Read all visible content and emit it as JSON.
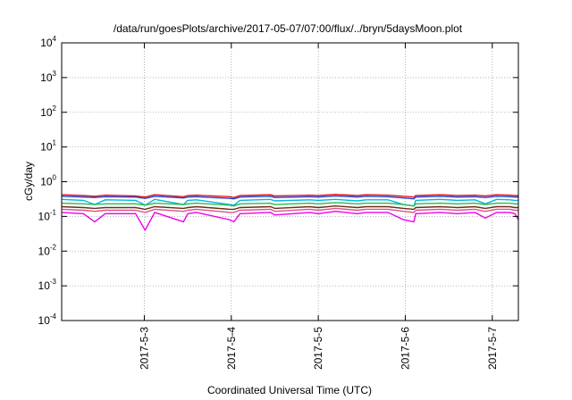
{
  "chart_data": {
    "type": "line",
    "title": "/data/run/goesPlots/archive/2017-05-07/07:00/flux/../bryn/5daysMoon.plot",
    "xlabel": "Coordinated Universal Time (UTC)",
    "ylabel": "cGy/day",
    "yscale": "log",
    "ylim": [
      0.0001,
      10000
    ],
    "xlim": [
      2.05,
      7.3
    ],
    "grid": true,
    "y_ticks": [
      {
        "base": "10",
        "exp": "4",
        "value": 10000
      },
      {
        "base": "10",
        "exp": "3",
        "value": 1000
      },
      {
        "base": "10",
        "exp": "2",
        "value": 100
      },
      {
        "base": "10",
        "exp": "1",
        "value": 10
      },
      {
        "base": "10",
        "exp": "0",
        "value": 1
      },
      {
        "base": "10",
        "exp": "-1",
        "value": 0.1
      },
      {
        "base": "10",
        "exp": "-2",
        "value": 0.01
      },
      {
        "base": "10",
        "exp": "-3",
        "value": 0.001
      },
      {
        "base": "10",
        "exp": "-4",
        "value": 0.0001
      }
    ],
    "x_ticks": [
      {
        "label": "2017-5-3",
        "value": 3
      },
      {
        "label": "2017-5-4",
        "value": 4
      },
      {
        "label": "2017-5-5",
        "value": 5
      },
      {
        "label": "2017-5-6",
        "value": 6
      },
      {
        "label": "2017-5-7",
        "value": 7
      }
    ],
    "x": [
      2.05,
      2.3,
      2.43,
      2.55,
      2.9,
      3.01,
      3.12,
      3.45,
      3.5,
      3.6,
      3.98,
      4.03,
      4.1,
      4.45,
      4.5,
      4.9,
      5.0,
      5.2,
      5.45,
      5.55,
      5.8,
      5.98,
      6.1,
      6.12,
      6.4,
      6.6,
      6.8,
      6.92,
      7.05,
      7.2,
      7.26,
      7.3
    ],
    "series": [
      {
        "color": "#e41a1c",
        "values": [
          0.42,
          0.4,
          0.38,
          0.41,
          0.39,
          0.36,
          0.42,
          0.37,
          0.4,
          0.41,
          0.37,
          0.35,
          0.4,
          0.42,
          0.39,
          0.41,
          0.4,
          0.43,
          0.4,
          0.42,
          0.41,
          0.38,
          0.36,
          0.4,
          0.42,
          0.4,
          0.41,
          0.39,
          0.42,
          0.41,
          0.4,
          0.4
        ]
      },
      {
        "color": "#1f3fd6",
        "values": [
          0.38,
          0.36,
          0.35,
          0.37,
          0.36,
          0.33,
          0.38,
          0.34,
          0.36,
          0.37,
          0.33,
          0.32,
          0.36,
          0.38,
          0.35,
          0.37,
          0.36,
          0.39,
          0.36,
          0.38,
          0.37,
          0.34,
          0.32,
          0.36,
          0.38,
          0.36,
          0.37,
          0.35,
          0.38,
          0.37,
          0.36,
          0.36
        ]
      },
      {
        "color": "#00b7e0",
        "values": [
          0.31,
          0.29,
          0.22,
          0.3,
          0.29,
          0.21,
          0.31,
          0.22,
          0.29,
          0.3,
          0.22,
          0.21,
          0.29,
          0.31,
          0.28,
          0.3,
          0.29,
          0.31,
          0.28,
          0.3,
          0.3,
          0.22,
          0.2,
          0.29,
          0.31,
          0.29,
          0.3,
          0.23,
          0.31,
          0.3,
          0.29,
          0.29
        ]
      },
      {
        "color": "#2db84d",
        "values": [
          0.24,
          0.23,
          0.22,
          0.23,
          0.23,
          0.21,
          0.24,
          0.22,
          0.23,
          0.24,
          0.21,
          0.2,
          0.23,
          0.24,
          0.22,
          0.24,
          0.23,
          0.25,
          0.23,
          0.24,
          0.24,
          0.22,
          0.2,
          0.23,
          0.24,
          0.23,
          0.24,
          0.22,
          0.24,
          0.24,
          0.23,
          0.23
        ]
      },
      {
        "color": "#6b2d1a",
        "values": [
          0.19,
          0.18,
          0.17,
          0.18,
          0.18,
          0.16,
          0.19,
          0.17,
          0.18,
          0.19,
          0.16,
          0.16,
          0.18,
          0.19,
          0.17,
          0.19,
          0.18,
          0.2,
          0.18,
          0.19,
          0.19,
          0.17,
          0.16,
          0.18,
          0.19,
          0.18,
          0.19,
          0.17,
          0.19,
          0.19,
          0.18,
          0.18
        ]
      },
      {
        "color": "#e0508a",
        "values": [
          0.16,
          0.15,
          0.14,
          0.15,
          0.15,
          0.13,
          0.16,
          0.14,
          0.15,
          0.16,
          0.13,
          0.13,
          0.15,
          0.16,
          0.14,
          0.16,
          0.15,
          0.17,
          0.15,
          0.16,
          0.16,
          0.14,
          0.13,
          0.15,
          0.16,
          0.15,
          0.16,
          0.14,
          0.16,
          0.16,
          0.15,
          0.15
        ]
      },
      {
        "color": "#ee00ee",
        "values": [
          0.13,
          0.12,
          0.07,
          0.12,
          0.12,
          0.04,
          0.13,
          0.07,
          0.12,
          0.13,
          0.08,
          0.07,
          0.12,
          0.13,
          0.11,
          0.13,
          0.12,
          0.14,
          0.12,
          0.13,
          0.13,
          0.08,
          0.07,
          0.12,
          0.13,
          0.12,
          0.13,
          0.09,
          0.13,
          0.13,
          0.12,
          0.08
        ]
      }
    ]
  }
}
